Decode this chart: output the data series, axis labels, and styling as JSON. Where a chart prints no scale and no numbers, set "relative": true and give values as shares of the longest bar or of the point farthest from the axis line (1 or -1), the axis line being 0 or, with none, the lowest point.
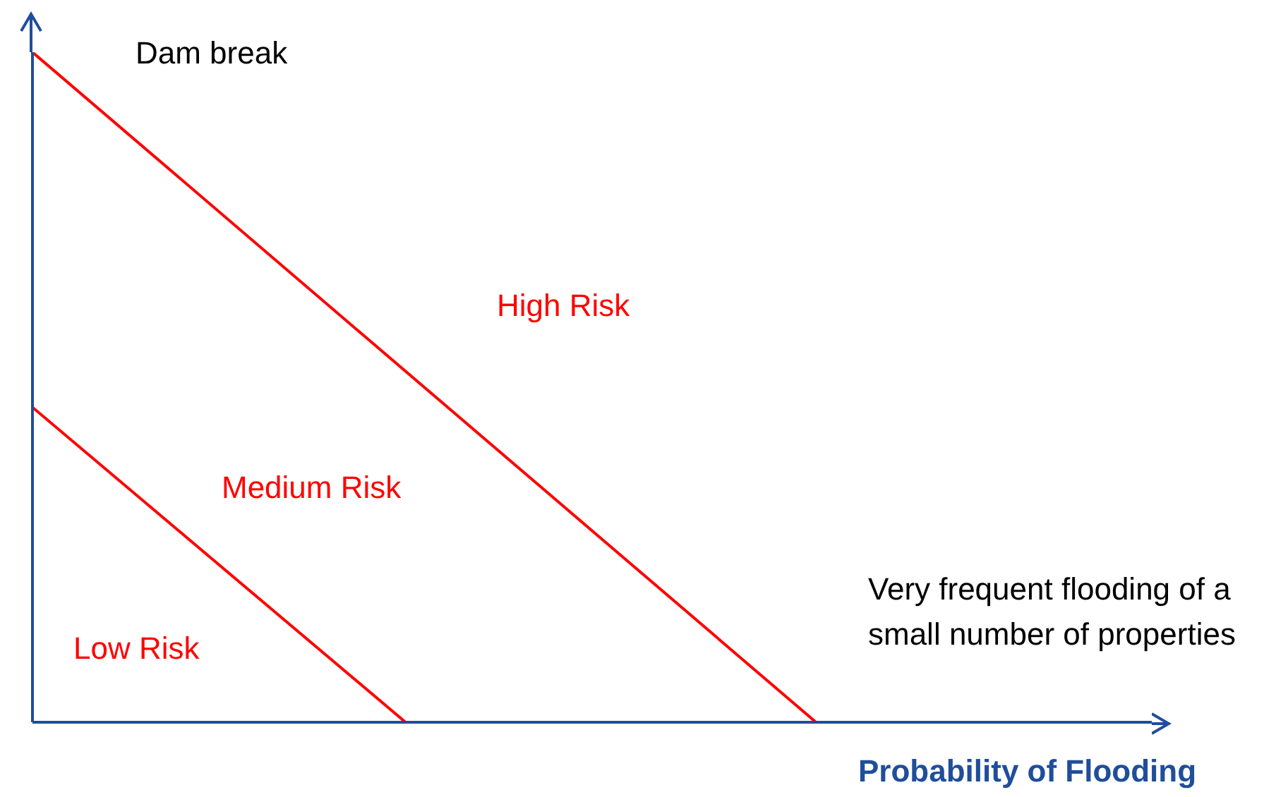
{
  "chart_data": {
    "type": "line",
    "relative": true,
    "xlabel": "Probability of Flooding",
    "categories": [
      null,
      null,
      null,
      null,
      null,
      null,
      null,
      null,
      null,
      null,
      null,
      null,
      null,
      null,
      null,
      null,
      null,
      null,
      null,
      null,
      null,
      null,
      null,
      null,
      null,
      null,
      null,
      null,
      null,
      null,
      null
    ],
    "series": [
      {
        "color": "#ff0000",
        "values": [
          1,
          null,
          null,
          null,
          null,
          null,
          null,
          null,
          null,
          null,
          null,
          null,
          null,
          null,
          null,
          null,
          null,
          null,
          null,
          null,
          null,
          0,
          null,
          null,
          null,
          null,
          null,
          null,
          null,
          null,
          null
        ]
      },
      {
        "color": "#ff0000",
        "values": [
          0.47,
          null,
          null,
          null,
          null,
          null,
          null,
          null,
          null,
          null,
          0,
          null,
          null,
          null,
          null,
          null,
          null,
          null,
          null,
          null,
          null,
          null,
          null,
          null,
          null,
          null,
          null,
          null,
          null,
          null,
          null
        ]
      }
    ],
    "annotations": [
      "Dam break",
      "High Risk",
      "Medium Risk",
      "Low Risk",
      "Very frequent flooding of a small number of properties"
    ],
    "grid": false,
    "legend": false,
    "marker": "none",
    "line_style": "solid"
  }
}
